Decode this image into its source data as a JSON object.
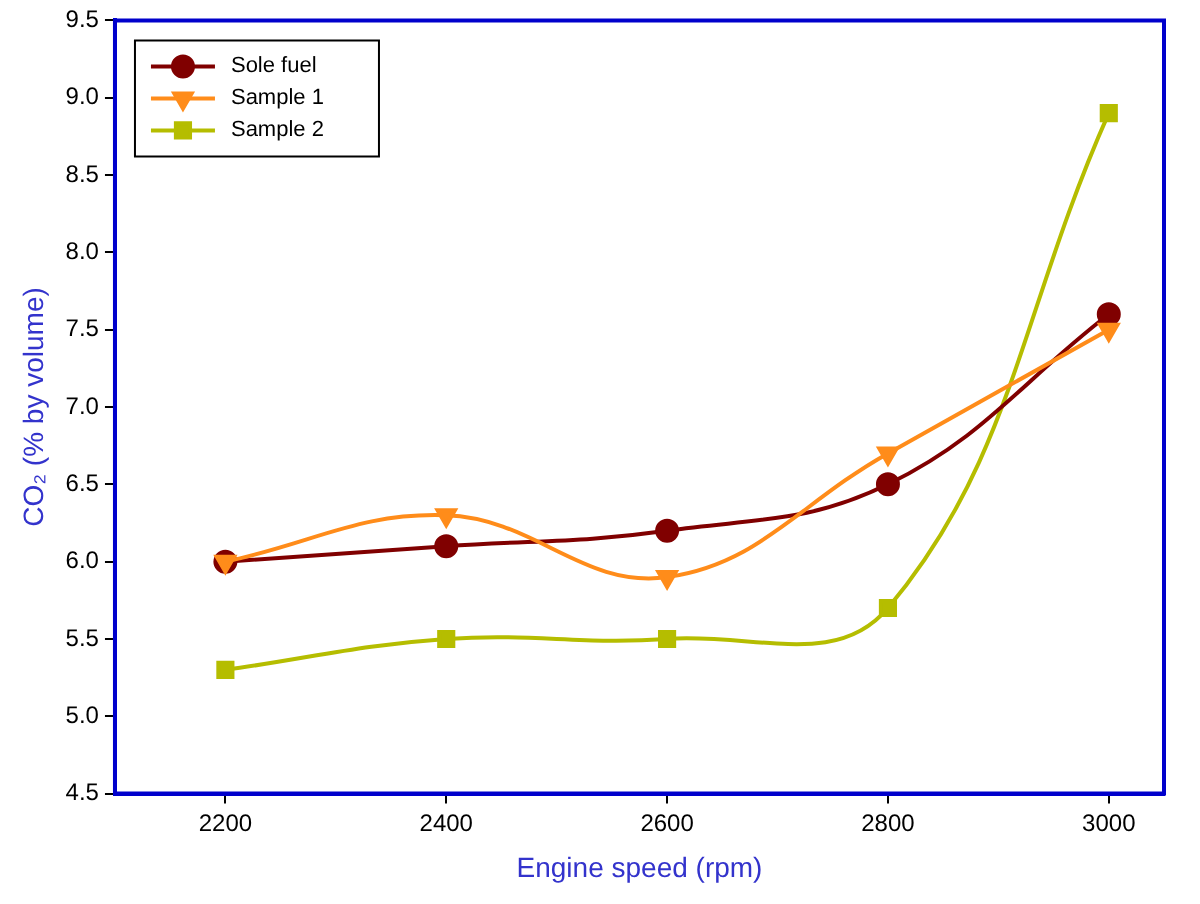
{
  "chart_data": {
    "type": "line",
    "xlabel": "Engine speed (rpm)",
    "ylabel": "CO₂ (% by volume)",
    "x": [
      2200,
      2400,
      2600,
      2800,
      3000
    ],
    "series": [
      {
        "name": "Sole fuel",
        "color": "#800000",
        "marker": "circle",
        "values": [
          6.0,
          6.1,
          6.2,
          6.5,
          7.6
        ]
      },
      {
        "name": "Sample 1",
        "color": "#ff8c1a",
        "marker": "triangle",
        "values": [
          6.0,
          6.3,
          5.9,
          6.7,
          7.5
        ]
      },
      {
        "name": "Sample 2",
        "color": "#b5bd00",
        "marker": "square",
        "values": [
          5.3,
          5.5,
          5.5,
          5.7,
          8.9
        ]
      }
    ],
    "xlim": [
      2100,
      3050
    ],
    "xticks": [
      2200,
      2400,
      2600,
      2800,
      3000
    ],
    "ylim": [
      4.5,
      9.5
    ],
    "yticks": [
      {
        "value": 4.5,
        "label": "4.5"
      },
      {
        "value": 5,
        "label": "5.0"
      },
      {
        "value": 5.5,
        "label": "5.5"
      },
      {
        "value": 6,
        "label": "6.0"
      },
      {
        "value": 6.5,
        "label": "6.5"
      },
      {
        "value": 7,
        "label": "7.0"
      },
      {
        "value": 7.5,
        "label": "7.5"
      },
      {
        "value": 8,
        "label": "8.0"
      },
      {
        "value": 8.5,
        "label": "8.5"
      },
      {
        "value": 9,
        "label": "9.0"
      },
      {
        "value": 9.5,
        "label": "9.5"
      }
    ],
    "grid": false,
    "legend": "top left"
  }
}
